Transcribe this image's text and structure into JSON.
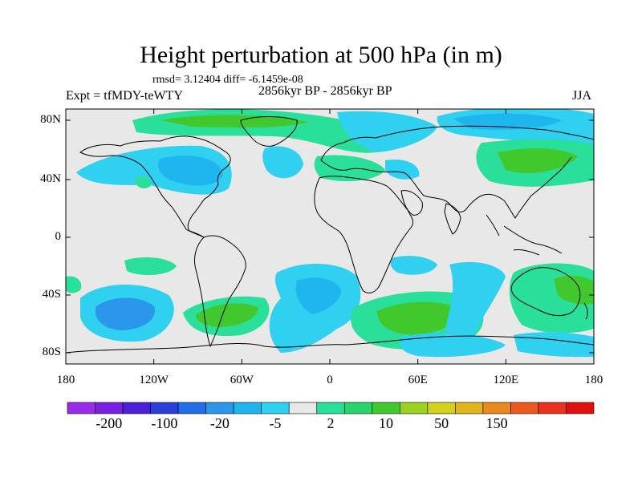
{
  "map": {
    "title": "Height perturbation at 500 hPa (in m)",
    "stats": "rmsd= 3.12404 diff= -6.1459e-08",
    "left_label": "Expt = tfMDY-teWTY",
    "center_label": "2856kyr BP - 2856kyr BP",
    "right_label": "JJA",
    "lat_ticks": [
      "80N",
      "40N",
      "0",
      "40S",
      "80S"
    ],
    "lon_ticks": [
      "180",
      "120W",
      "60W",
      "0",
      "60E",
      "120E",
      "180"
    ]
  },
  "colorbar": {
    "colors": [
      "#9b2bea",
      "#7a1ee0",
      "#4b1fd8",
      "#2a3fd8",
      "#1f6fe8",
      "#2a97ea",
      "#1fb6f0",
      "#2fd0f0",
      "#e8e8e8",
      "#2adf9a",
      "#2ad46c",
      "#40c82c",
      "#9ad21f",
      "#d2d21e",
      "#e0b41e",
      "#e88a1e",
      "#ea5a1e",
      "#e8321e",
      "#e01010"
    ],
    "labels": [
      "-200",
      "-100",
      "-20",
      "-5",
      "2",
      "10",
      "50",
      "150"
    ]
  },
  "palette": {
    "plot_bg": "#e8e8e8",
    "light_blue": "#2fd0f0",
    "mid_blue": "#1fb6f0",
    "dark_blue": "#2a97ea",
    "light_green": "#2adf9a",
    "green": "#40c82c",
    "coast": "#000000"
  }
}
